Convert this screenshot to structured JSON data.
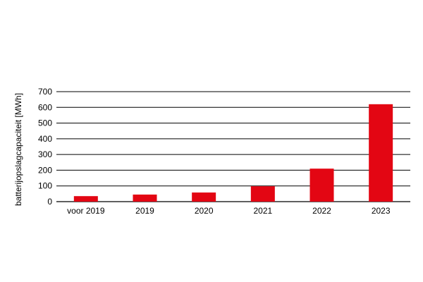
{
  "chart_data": {
    "type": "bar",
    "title": "",
    "xlabel": "",
    "ylabel": "batterijopslagcapaciteit [MWh]",
    "categories": [
      "voor 2019",
      "2019",
      "2020",
      "2021",
      "2022",
      "2023"
    ],
    "values": [
      35,
      45,
      58,
      98,
      210,
      620
    ],
    "ylim": [
      0,
      700
    ],
    "yticks": [
      0,
      100,
      200,
      300,
      400,
      500,
      600,
      700
    ],
    "grid": "horizontal",
    "legend": "none",
    "colors": {
      "bar": "#e30613",
      "grid": "#000000",
      "text": "#000000"
    }
  }
}
